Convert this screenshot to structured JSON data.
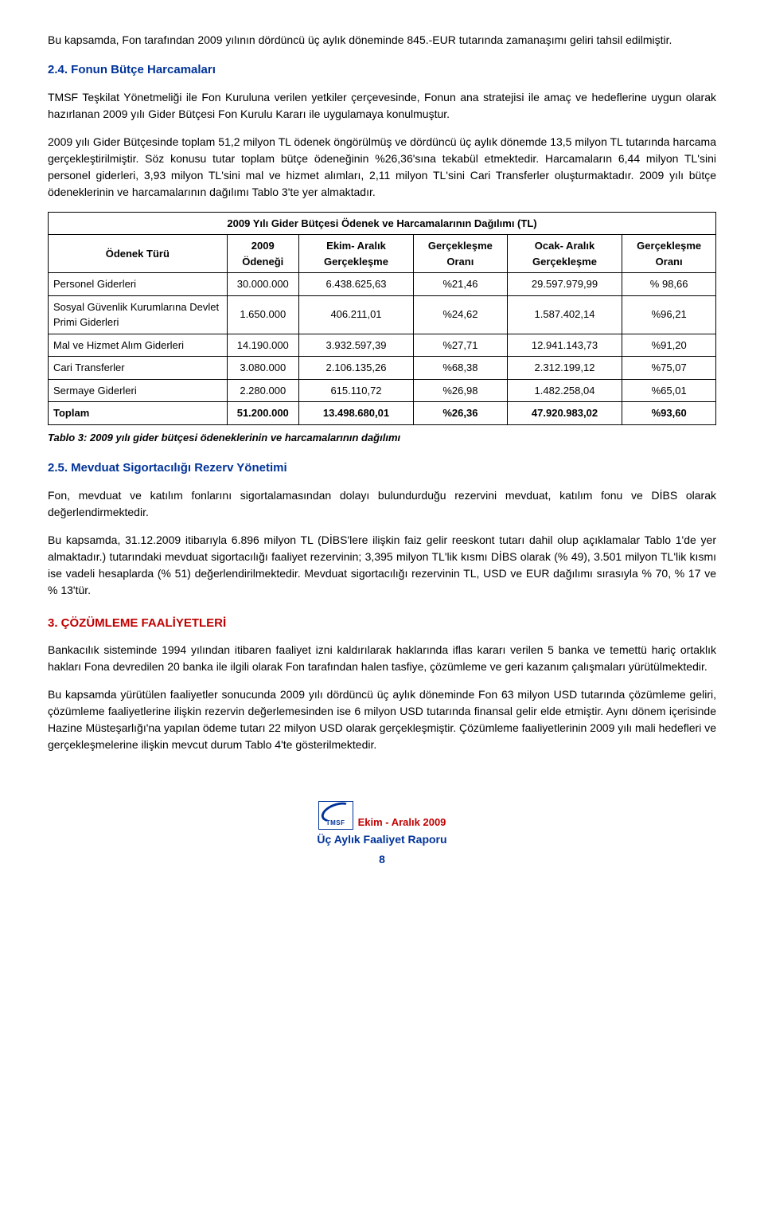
{
  "intro_para": "Bu kapsamda, Fon tarafından 2009 yılının dördüncü üç aylık döneminde 845.-EUR tutarında zamanaşımı geliri tahsil edilmiştir.",
  "sec24": {
    "heading": "2.4. Fonun Bütçe Harcamaları",
    "p1": "TMSF Teşkilat Yönetmeliği ile Fon Kuruluna verilen yetkiler çerçevesinde, Fonun ana stratejisi ile amaç ve hedeflerine uygun olarak hazırlanan 2009 yılı Gider Bütçesi Fon Kurulu Kararı ile uygulamaya konulmuştur.",
    "p2": "2009 yılı Gider Bütçesinde toplam 51,2 milyon TL ödenek öngörülmüş ve dördüncü üç aylık dönemde 13,5 milyon TL tutarında harcama gerçekleştirilmiştir. Söz konusu tutar toplam bütçe ödeneğinin %26,36'sına tekabül etmektedir. Harcamaların 6,44 milyon TL'sini personel giderleri, 3,93 milyon TL'sini mal ve hizmet alımları, 2,11 milyon TL'sini Cari Transferler oluşturmaktadır. 2009 yılı bütçe ödeneklerinin ve harcamalarının dağılımı Tablo 3'te yer almaktadır."
  },
  "table": {
    "title": "2009 Yılı Gider Bütçesi Ödenek ve Harcamalarının Dağılımı (TL)",
    "headers": {
      "c0": "Ödenek Türü",
      "c1": "2009 Ödeneği",
      "c2": "Ekim- Aralık Gerçekleşme",
      "c3": "Gerçekleşme Oranı",
      "c4": "Ocak- Aralık Gerçekleşme",
      "c5": "Gerçekleşme Oranı"
    },
    "rows": [
      {
        "label": "Personel Giderleri",
        "c1": "30.000.000",
        "c2": "6.438.625,63",
        "c3": "%21,46",
        "c4": "29.597.979,99",
        "c5": "% 98,66"
      },
      {
        "label": "Sosyal Güvenlik Kurumlarına Devlet Primi Giderleri",
        "c1": "1.650.000",
        "c2": "406.211,01",
        "c3": "%24,62",
        "c4": "1.587.402,14",
        "c5": "%96,21"
      },
      {
        "label": "Mal ve Hizmet Alım Giderleri",
        "c1": "14.190.000",
        "c2": "3.932.597,39",
        "c3": "%27,71",
        "c4": "12.941.143,73",
        "c5": "%91,20"
      },
      {
        "label": "Cari Transferler",
        "c1": "3.080.000",
        "c2": "2.106.135,26",
        "c3": "%68,38",
        "c4": "2.312.199,12",
        "c5": "%75,07"
      },
      {
        "label": "Sermaye Giderleri",
        "c1": "2.280.000",
        "c2": "615.110,72",
        "c3": "%26,98",
        "c4": "1.482.258,04",
        "c5": "%65,01"
      }
    ],
    "total": {
      "label": "Toplam",
      "c1": "51.200.000",
      "c2": "13.498.680,01",
      "c3": "%26,36",
      "c4": "47.920.983,02",
      "c5": "%93,60"
    },
    "caption": "Tablo 3: 2009 yılı gider bütçesi ödeneklerinin ve harcamalarının dağılımı"
  },
  "sec25": {
    "heading": "2.5. Mevduat Sigortacılığı Rezerv Yönetimi",
    "p1": "Fon, mevduat ve katılım fonlarını sigortalamasından dolayı bulundurduğu rezervini mevduat, katılım fonu ve DİBS olarak değerlendirmektedir.",
    "p2": "Bu kapsamda, 31.12.2009 itibarıyla 6.896 milyon TL (DİBS'lere ilişkin faiz gelir reeskont tutarı dahil olup açıklamalar Tablo 1'de yer almaktadır.) tutarındaki mevduat sigortacılığı faaliyet rezervinin; 3,395 milyon TL'lik kısmı DİBS olarak (% 49), 3.501 milyon TL'lik kısmı ise vadeli hesaplarda (% 51) değerlendirilmektedir. Mevduat sigortacılığı rezervinin TL, USD ve EUR dağılımı sırasıyla % 70, % 17 ve % 13'tür."
  },
  "sec3": {
    "heading": "3.    ÇÖZÜMLEME FAALİYETLERİ",
    "p1": "Bankacılık sisteminde 1994 yılından itibaren faaliyet izni kaldırılarak haklarında iflas kararı verilen 5 banka ve temettü hariç ortaklık hakları Fona devredilen 20 banka ile ilgili olarak Fon tarafından halen tasfiye, çözümleme ve geri kazanım çalışmaları yürütülmektedir.",
    "p2": "Bu kapsamda yürütülen faaliyetler sonucunda 2009 yılı dördüncü üç aylık döneminde Fon 63 milyon USD tutarında çözümleme geliri, çözümleme faaliyetlerine ilişkin rezervin değerlemesinden ise 6 milyon USD tutarında finansal gelir elde etmiştir. Aynı dönem içerisinde Hazine Müsteşarlığı'na yapılan ödeme tutarı 22 milyon USD olarak gerçekleşmiştir. Çözümleme faaliyetlerinin 2009 yılı mali hedefleri ve gerçekleşmelerine ilişkin mevcut durum Tablo 4'te gösterilmektedir."
  },
  "footer": {
    "logo_text": "TMSF",
    "line1": "Ekim - Aralık 2009",
    "line2": "Üç Aylık Faaliyet Raporu",
    "page": "8"
  }
}
